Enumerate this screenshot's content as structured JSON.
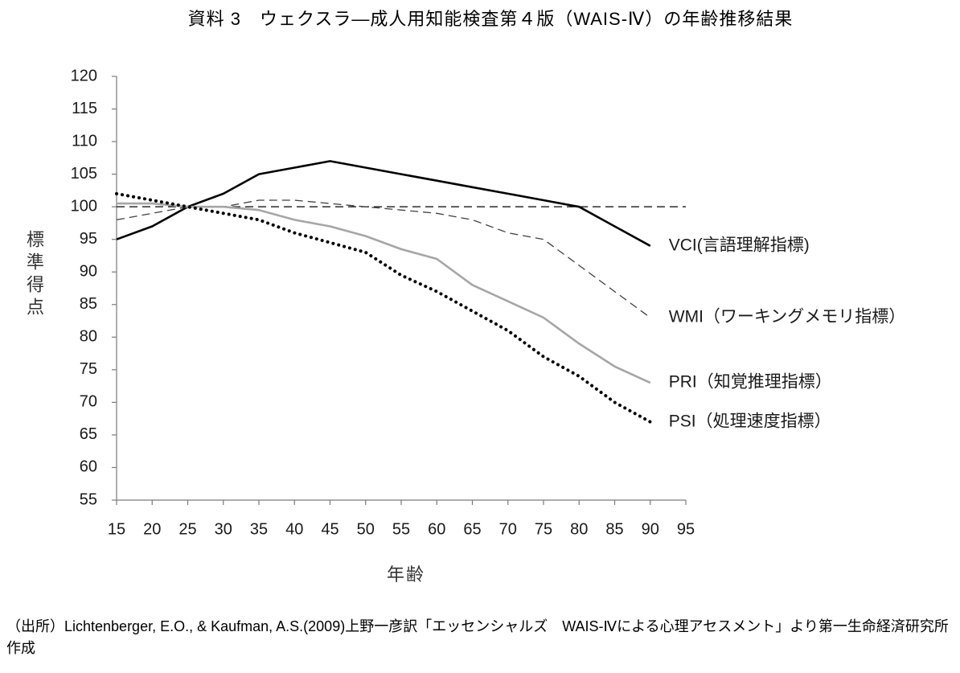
{
  "chart_data": {
    "type": "line",
    "title": "資料 3　ウェクスラ—成人用知能検査第４版（WAIS-Ⅳ）の年齢推移結果",
    "xlabel": "年齢",
    "ylabel": "標準得点",
    "xlim": [
      15,
      95
    ],
    "ylim": [
      55,
      120
    ],
    "xticks": [
      15,
      20,
      25,
      30,
      35,
      40,
      45,
      50,
      55,
      60,
      65,
      70,
      75,
      80,
      85,
      90,
      95
    ],
    "yticks": [
      55,
      60,
      65,
      70,
      75,
      80,
      85,
      90,
      95,
      100,
      105,
      110,
      115,
      120
    ],
    "grid": false,
    "legend": "right",
    "reference_line": {
      "y": 100,
      "style": "dashed",
      "color": "#000000"
    },
    "x": [
      15,
      20,
      25,
      30,
      35,
      40,
      45,
      50,
      55,
      60,
      65,
      70,
      75,
      80,
      85,
      90
    ],
    "series": [
      {
        "name": "VCI(言語理解指標)",
        "style": "solid",
        "color": "#000000",
        "values": [
          95,
          97,
          100,
          102,
          105,
          106,
          107,
          106,
          105,
          104,
          103,
          102,
          101,
          100,
          97,
          94
        ]
      },
      {
        "name": "WMI（ワーキングメモリ指標）",
        "style": "dashed",
        "color": "#404040",
        "values": [
          98,
          99,
          100,
          100,
          101,
          101,
          100.5,
          100,
          99.5,
          99,
          98,
          96,
          95,
          91,
          87,
          83
        ]
      },
      {
        "name": "PRI（知覚推理指標）",
        "style": "solid",
        "color": "#a6a6a6",
        "values": [
          100.5,
          100.5,
          100,
          100,
          99.5,
          98,
          97,
          95.5,
          93.5,
          92,
          88,
          85.5,
          83,
          79,
          75.5,
          73
        ]
      },
      {
        "name": "PSI（処理速度指標）",
        "style": "dotted",
        "color": "#000000",
        "values": [
          102,
          101,
          100,
          99,
          98,
          96,
          94.5,
          93,
          89.5,
          87,
          84,
          81,
          77,
          74,
          70,
          67
        ]
      }
    ]
  },
  "footnote": "（出所）Lichtenberger, E.O., & Kaufman, A.S.(2009)上野一彦訳「エッセンシャルズ　WAIS-Ⅳによる心理アセスメント」より第一生命経済研究所作成"
}
